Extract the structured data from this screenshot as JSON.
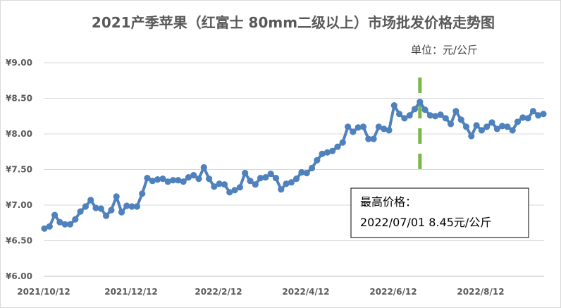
{
  "chart_data": {
    "type": "line",
    "title": "2021产季苹果（红富士 80mm二级以上）市场批发价格走势图",
    "unit_label": "单位：元/公斤",
    "ylim": [
      6.0,
      9.0
    ],
    "y_ticks": [
      {
        "value": 6.0,
        "label": "¥6.00"
      },
      {
        "value": 6.5,
        "label": "¥6.50"
      },
      {
        "value": 7.0,
        "label": "¥7.00"
      },
      {
        "value": 7.5,
        "label": "¥7.50"
      },
      {
        "value": 8.0,
        "label": "¥8.00"
      },
      {
        "value": 8.5,
        "label": "¥8.50"
      },
      {
        "value": 9.0,
        "label": "¥9.00"
      }
    ],
    "x_ticks": [
      "2021/10/12",
      "2021/12/12",
      "2022/2/12",
      "2022/4/12",
      "2022/6/12",
      "2022/8/12"
    ],
    "grid": "horizontal",
    "line_color": "#4f81bd",
    "peak_marker_color": "#7ab648",
    "series": [
      {
        "values": [
          6.67,
          6.7,
          6.86,
          6.76,
          6.73,
          6.73,
          6.8,
          6.91,
          6.98,
          7.07,
          6.96,
          6.95,
          6.85,
          6.93,
          7.12,
          6.9,
          6.99,
          6.98,
          6.98,
          7.16,
          7.38,
          7.34,
          7.36,
          7.37,
          7.33,
          7.35,
          7.35,
          7.33,
          7.39,
          7.42,
          7.37,
          7.53,
          7.37,
          7.26,
          7.3,
          7.29,
          7.18,
          7.21,
          7.25,
          7.45,
          7.34,
          7.29,
          7.38,
          7.39,
          7.44,
          7.38,
          7.22,
          7.3,
          7.32,
          7.37,
          7.46,
          7.45,
          7.52,
          7.63,
          7.72,
          7.74,
          7.76,
          7.82,
          7.88,
          8.1,
          8.03,
          8.09,
          8.1,
          7.93,
          7.93,
          8.1,
          8.07,
          8.05,
          8.4,
          8.28,
          8.22,
          8.26,
          8.35,
          8.45,
          8.34,
          8.26,
          8.25,
          8.27,
          8.22,
          8.14,
          8.32,
          8.2,
          8.1,
          7.97,
          8.12,
          8.05,
          8.1,
          8.16,
          8.07,
          8.11,
          8.1,
          8.05,
          8.17,
          8.23,
          8.22,
          8.32,
          8.26,
          8.28
        ]
      }
    ],
    "annotation": {
      "line1": "最高价格：",
      "line2": "2022/07/01  8.45元/公斤"
    }
  }
}
